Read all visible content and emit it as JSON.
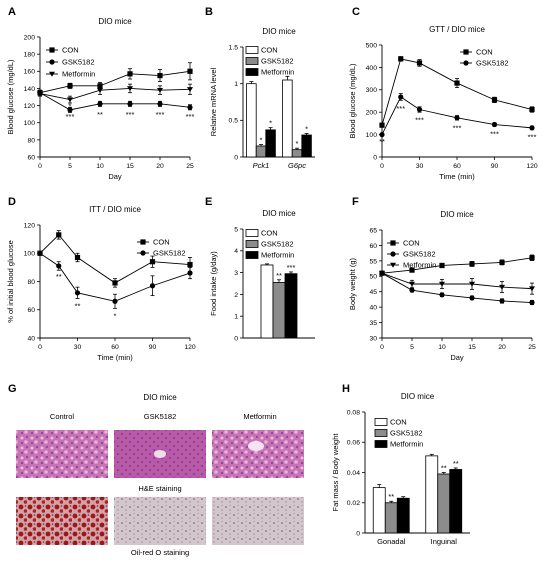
{
  "chart_data": [
    {
      "panel": "A",
      "type": "line",
      "title": "DIO mice",
      "xlabel": "Day",
      "ylabel": "Blood glucose (mg/dL)",
      "xlim": [
        0,
        25
      ],
      "ylim": [
        60,
        200
      ],
      "xticks": [
        0,
        5,
        10,
        15,
        20,
        25
      ],
      "yticks": [
        60,
        80,
        100,
        120,
        140,
        160,
        180,
        200
      ],
      "series": [
        {
          "name": "CON",
          "marker": "square",
          "x": [
            0,
            5,
            10,
            15,
            20,
            25
          ],
          "y": [
            135,
            143,
            143,
            157,
            155,
            160
          ],
          "err": [
            3,
            3,
            4,
            6,
            7,
            10
          ]
        },
        {
          "name": "GSK5182",
          "marker": "circle",
          "x": [
            0,
            5,
            10,
            15,
            20,
            25
          ],
          "y": [
            135,
            115,
            122,
            122,
            122,
            118
          ],
          "err": [
            3,
            3,
            3,
            3,
            3,
            3
          ]
        },
        {
          "name": "Metformin",
          "marker": "tri-down",
          "x": [
            0,
            5,
            10,
            15,
            20,
            25
          ],
          "y": [
            134,
            127,
            138,
            140,
            138,
            139
          ],
          "err": [
            3,
            4,
            5,
            5,
            5,
            6
          ]
        }
      ],
      "annotations": [
        {
          "x": 5,
          "y": 120,
          "text": "*"
        },
        {
          "x": 5,
          "y": 108,
          "text": "***"
        },
        {
          "x": 10,
          "y": 110,
          "text": "**"
        },
        {
          "x": 15,
          "y": 110,
          "text": "***"
        },
        {
          "x": 20,
          "y": 110,
          "text": "***"
        },
        {
          "x": 25,
          "y": 108,
          "text": "***"
        }
      ]
    },
    {
      "panel": "B",
      "type": "bar",
      "title": "DIO mice",
      "ylabel": "Relative mRNA level",
      "categories": [
        "Pck1",
        "G6pc"
      ],
      "ylim": [
        0,
        1.5
      ],
      "yticks": [
        0,
        0.5,
        1.0,
        1.5
      ],
      "series": [
        {
          "name": "CON",
          "fill": "#ffffff",
          "values": [
            1.0,
            1.05
          ],
          "err": [
            0.03,
            0.05
          ]
        },
        {
          "name": "GSK5182",
          "fill": "#8c8c8c",
          "values": [
            0.15,
            0.1
          ],
          "err": [
            0.02,
            0.02
          ],
          "stars": [
            "*",
            "*"
          ]
        },
        {
          "name": "Metformin",
          "fill": "#000000",
          "values": [
            0.37,
            0.3
          ],
          "err": [
            0.03,
            0.02
          ],
          "stars": [
            "*",
            "*"
          ]
        }
      ]
    },
    {
      "panel": "C",
      "type": "line",
      "title": "GTT / DIO mice",
      "xlabel": "Time (min)",
      "ylabel": "Blood glucose (mg/dL)",
      "xlim": [
        0,
        120
      ],
      "ylim": [
        0,
        500
      ],
      "xticks": [
        0,
        30,
        60,
        90,
        120
      ],
      "yticks": [
        0,
        100,
        200,
        300,
        400,
        500
      ],
      "series": [
        {
          "name": "CON",
          "marker": "square",
          "x": [
            0,
            15,
            30,
            60,
            90,
            120
          ],
          "y": [
            142,
            438,
            420,
            330,
            255,
            212
          ],
          "err": [
            8,
            10,
            15,
            20,
            12,
            12
          ]
        },
        {
          "name": "GSK5182",
          "marker": "circle",
          "x": [
            0,
            15,
            30,
            60,
            90,
            120
          ],
          "y": [
            100,
            268,
            212,
            175,
            145,
            130
          ],
          "err": [
            6,
            15,
            12,
            10,
            8,
            8
          ]
        }
      ],
      "annotations": [
        {
          "x": 0,
          "y": 72,
          "text": "**"
        },
        {
          "x": 15,
          "y": 218,
          "text": "***"
        },
        {
          "x": 30,
          "y": 168,
          "text": "***"
        },
        {
          "x": 60,
          "y": 132,
          "text": "***"
        },
        {
          "x": 90,
          "y": 105,
          "text": "***"
        },
        {
          "x": 120,
          "y": 92,
          "text": "***"
        }
      ]
    },
    {
      "panel": "D",
      "type": "line",
      "title": "ITT / DIO mice",
      "xlabel": "Time (min)",
      "ylabel": "% of initial blood glucose",
      "xlim": [
        0,
        120
      ],
      "ylim": [
        40,
        120
      ],
      "xticks": [
        0,
        30,
        60,
        90,
        120
      ],
      "yticks": [
        40,
        60,
        80,
        100,
        120
      ],
      "series": [
        {
          "name": "CON",
          "marker": "square",
          "x": [
            0,
            15,
            30,
            60,
            90,
            120
          ],
          "y": [
            100,
            113,
            97,
            79,
            94,
            92
          ],
          "err": [
            0,
            3,
            3,
            3,
            4,
            5
          ]
        },
        {
          "name": "GSK5182",
          "marker": "circle",
          "x": [
            0,
            15,
            30,
            60,
            90,
            120
          ],
          "y": [
            100,
            91,
            72,
            66,
            77,
            86
          ],
          "err": [
            0,
            3,
            4,
            5,
            7,
            4
          ]
        }
      ],
      "annotations": [
        {
          "x": 15,
          "y": 84,
          "text": "**"
        },
        {
          "x": 30,
          "y": 63,
          "text": "**"
        },
        {
          "x": 60,
          "y": 56,
          "text": "*"
        }
      ]
    },
    {
      "panel": "E",
      "type": "bar",
      "title": "DIO mice",
      "ylabel": "Food intake (g/day)",
      "categories": [
        ""
      ],
      "ylim": [
        0,
        5
      ],
      "yticks": [
        0,
        1,
        2,
        3,
        4,
        5
      ],
      "series": [
        {
          "name": "CON",
          "fill": "#ffffff",
          "values": [
            3.35
          ],
          "err": [
            0.05
          ]
        },
        {
          "name": "GSK5182",
          "fill": "#8c8c8c",
          "values": [
            2.55
          ],
          "err": [
            0.12
          ],
          "stars": [
            "**"
          ]
        },
        {
          "name": "Metformin",
          "fill": "#000000",
          "values": [
            2.95
          ],
          "err": [
            0.08
          ],
          "stars": [
            "***"
          ]
        }
      ]
    },
    {
      "panel": "F",
      "type": "line",
      "title": "DIO mice",
      "xlabel": "Day",
      "ylabel": "Body weight (g)",
      "xlim": [
        0,
        25
      ],
      "ylim": [
        30,
        65
      ],
      "xticks": [
        0,
        5,
        10,
        15,
        20,
        25
      ],
      "yticks": [
        30,
        35,
        40,
        45,
        50,
        55,
        60,
        65
      ],
      "series": [
        {
          "name": "CON",
          "marker": "square",
          "x": [
            0,
            5,
            10,
            15,
            20,
            25
          ],
          "y": [
            51,
            52,
            53.5,
            54,
            54.5,
            56
          ],
          "err": [
            0.5,
            0.6,
            0.7,
            0.8,
            0.8,
            0.9
          ]
        },
        {
          "name": "GSK5182",
          "marker": "circle",
          "x": [
            0,
            5,
            10,
            15,
            20,
            25
          ],
          "y": [
            51,
            45.5,
            44,
            43,
            42,
            41.5
          ],
          "err": [
            0.5,
            0.6,
            0.6,
            0.6,
            0.7,
            0.7
          ]
        },
        {
          "name": "Metformin",
          "marker": "tri-down",
          "x": [
            0,
            5,
            10,
            15,
            20,
            25
          ],
          "y": [
            51,
            47.5,
            47.5,
            47.5,
            46.5,
            46
          ],
          "err": [
            0.6,
            1.2,
            1.5,
            1.8,
            1.8,
            1.8
          ]
        }
      ]
    },
    {
      "panel": "H",
      "type": "bar",
      "title": "DIO mice",
      "ylabel": "Fat mass / Body weight",
      "categories": [
        "Gonadal",
        "Inguinal"
      ],
      "ylim": [
        0,
        0.08
      ],
      "yticks": [
        0,
        0.02,
        0.04,
        0.06,
        0.08
      ],
      "series": [
        {
          "name": "CON",
          "fill": "#ffffff",
          "values": [
            0.03,
            0.051
          ],
          "err": [
            0.002,
            0.001
          ]
        },
        {
          "name": "GSK5182",
          "fill": "#8c8c8c",
          "values": [
            0.02,
            0.039
          ],
          "err": [
            0.001,
            0.001
          ],
          "stars": [
            "**",
            "**"
          ]
        },
        {
          "name": "Metformin",
          "fill": "#000000",
          "values": [
            0.023,
            0.042
          ],
          "err": [
            0.001,
            0.001
          ],
          "stars": [
            "",
            "**"
          ]
        }
      ]
    }
  ],
  "panel_g": {
    "letter": "G",
    "title": "DIO mice",
    "columns": [
      "Control",
      "GSK5182",
      "Metformin"
    ],
    "he_label": "H&E staining",
    "oil_label": "Oil-red O staining"
  },
  "panel_letters": [
    "A",
    "B",
    "C",
    "D",
    "E",
    "F",
    "H"
  ]
}
